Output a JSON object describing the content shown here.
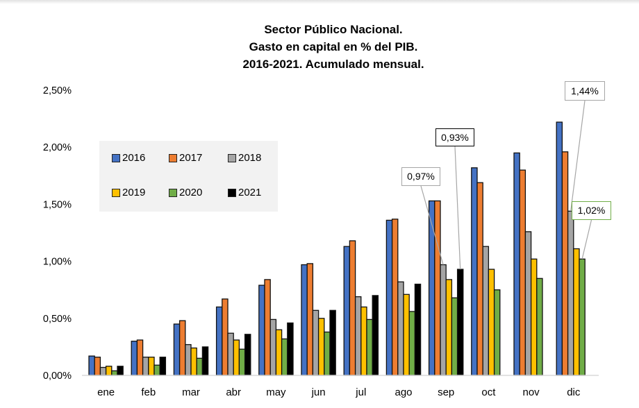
{
  "chart_data": {
    "type": "bar",
    "title": [
      "Sector Público Nacional.",
      "Gasto en capital en % del PIB.",
      "2016-2021. Acumulado mensual."
    ],
    "xlabel": "",
    "ylabel": "",
    "ylim": [
      0,
      2.5
    ],
    "yticks": [
      {
        "value": 0,
        "label": "0,00%"
      },
      {
        "value": 0.5,
        "label": "0,50%"
      },
      {
        "value": 1.0,
        "label": "1,00%"
      },
      {
        "value": 1.5,
        "label": "1,50%"
      },
      {
        "value": 2.0,
        "label": "2,00%"
      },
      {
        "value": 2.5,
        "label": "2,50%"
      }
    ],
    "grid": false,
    "legend_position": "top-left",
    "categories": [
      "ene",
      "feb",
      "mar",
      "abr",
      "may",
      "jun",
      "jul",
      "ago",
      "sep",
      "oct",
      "nov",
      "dic"
    ],
    "series": [
      {
        "name": "2016",
        "color": "#4472c4",
        "values": [
          0.17,
          0.3,
          0.45,
          0.6,
          0.79,
          0.97,
          1.13,
          1.36,
          1.53,
          1.82,
          1.95,
          2.22
        ]
      },
      {
        "name": "2017",
        "color": "#ed7d31",
        "values": [
          0.16,
          0.31,
          0.48,
          0.67,
          0.84,
          0.98,
          1.18,
          1.37,
          1.53,
          1.69,
          1.8,
          1.96
        ]
      },
      {
        "name": "2018",
        "color": "#a5a5a5",
        "values": [
          0.07,
          0.16,
          0.27,
          0.37,
          0.49,
          0.57,
          0.69,
          0.82,
          0.97,
          1.13,
          1.26,
          1.44
        ]
      },
      {
        "name": "2019",
        "color": "#ffc000",
        "values": [
          0.08,
          0.16,
          0.24,
          0.31,
          0.4,
          0.5,
          0.6,
          0.71,
          0.84,
          0.93,
          1.02,
          1.11
        ]
      },
      {
        "name": "2020",
        "color": "#70ad47",
        "values": [
          0.04,
          0.09,
          0.15,
          0.23,
          0.32,
          0.38,
          0.49,
          0.56,
          0.68,
          0.75,
          0.85,
          1.02
        ]
      },
      {
        "name": "2021",
        "color": "#000000",
        "values": [
          0.08,
          0.16,
          0.25,
          0.36,
          0.46,
          0.57,
          0.7,
          0.8,
          0.93,
          null,
          null,
          null
        ]
      }
    ],
    "annotations": [
      {
        "label": "0,97%",
        "series": "2018",
        "category": "sep",
        "border": "#a5a5a5"
      },
      {
        "label": "0,93%",
        "series": "2021",
        "category": "sep",
        "border": "#000000"
      },
      {
        "label": "1,44%",
        "series": "2018",
        "category": "dic",
        "border": "#a5a5a5"
      },
      {
        "label": "1,02%",
        "series": "2020",
        "category": "dic",
        "border": "#70ad47"
      }
    ]
  }
}
